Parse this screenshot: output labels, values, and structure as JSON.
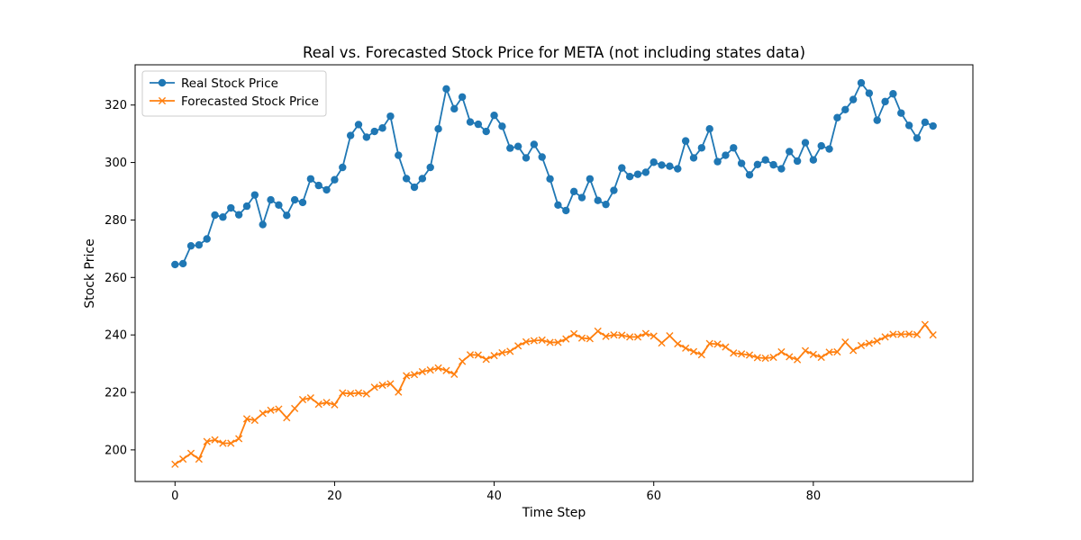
{
  "chart_data": {
    "type": "line",
    "title": "Real vs. Forecasted Stock Price for META (not including states data)",
    "xlabel": "Time Step",
    "ylabel": "Stock Price",
    "xlim": [
      -5,
      100
    ],
    "ylim": [
      189,
      334
    ],
    "xticks": [
      0,
      20,
      40,
      60,
      80
    ],
    "yticks": [
      200,
      220,
      240,
      260,
      280,
      300,
      320
    ],
    "grid": false,
    "legend_position": "top-left",
    "series": [
      {
        "name": "Real Stock Price",
        "color": "#1f77b4",
        "marker": "circle",
        "values": [
          264.5,
          264.8,
          271.0,
          271.3,
          273.4,
          281.7,
          281.0,
          284.2,
          281.8,
          284.8,
          288.7,
          278.4,
          287.0,
          285.2,
          281.6,
          287.0,
          286.1,
          294.3,
          292.0,
          290.5,
          294.0,
          298.3,
          309.4,
          313.2,
          308.8,
          310.8,
          312.0,
          316.1,
          302.5,
          294.4,
          291.4,
          294.4,
          298.3,
          311.7,
          325.6,
          318.7,
          322.8,
          314.1,
          313.3,
          310.8,
          316.4,
          312.6,
          305.0,
          305.6,
          301.6,
          306.3,
          301.9,
          294.3,
          285.2,
          283.3,
          289.9,
          287.8,
          294.3,
          286.8,
          285.4,
          290.3,
          298.1,
          295.1,
          295.9,
          296.6,
          300.1,
          299.1,
          298.7,
          297.8,
          307.5,
          301.6,
          305.1,
          311.7,
          300.3,
          302.5,
          305.1,
          299.7,
          295.7,
          299.3,
          300.9,
          299.2,
          297.8,
          303.8,
          300.5,
          306.9,
          300.9,
          305.8,
          304.7,
          315.6,
          318.4,
          321.9,
          327.7,
          324.1,
          314.7,
          321.2,
          323.9,
          317.2,
          312.9,
          308.5,
          314.0,
          312.7
        ]
      },
      {
        "name": "Forecasted Stock Price",
        "color": "#ff7f0e",
        "marker": "x",
        "values": [
          195.0,
          196.8,
          198.8,
          196.8,
          202.9,
          203.5,
          202.3,
          202.3,
          203.9,
          210.8,
          210.3,
          212.7,
          213.8,
          214.2,
          211.2,
          214.4,
          217.5,
          218.1,
          215.9,
          216.5,
          215.7,
          219.8,
          219.6,
          219.8,
          219.5,
          221.8,
          222.5,
          223.0,
          220.1,
          225.8,
          226.2,
          227.2,
          227.8,
          228.5,
          227.6,
          226.3,
          230.8,
          233.1,
          233.0,
          231.5,
          232.8,
          233.8,
          234.3,
          236.2,
          237.6,
          238.0,
          238.2,
          237.4,
          237.4,
          238.6,
          240.4,
          238.9,
          238.7,
          241.3,
          239.5,
          240.0,
          239.9,
          239.3,
          239.3,
          240.5,
          239.6,
          237.2,
          239.7,
          236.9,
          235.4,
          234.2,
          233.1,
          237.0,
          236.8,
          235.8,
          233.7,
          233.4,
          233.0,
          232.1,
          231.9,
          232.2,
          234.1,
          232.4,
          231.4,
          234.5,
          233.2,
          232.2,
          234.0,
          234.1,
          237.5,
          234.6,
          236.3,
          237.1,
          237.9,
          239.3,
          240.2,
          240.2,
          240.3,
          240.1,
          243.6,
          240.0
        ]
      }
    ]
  }
}
